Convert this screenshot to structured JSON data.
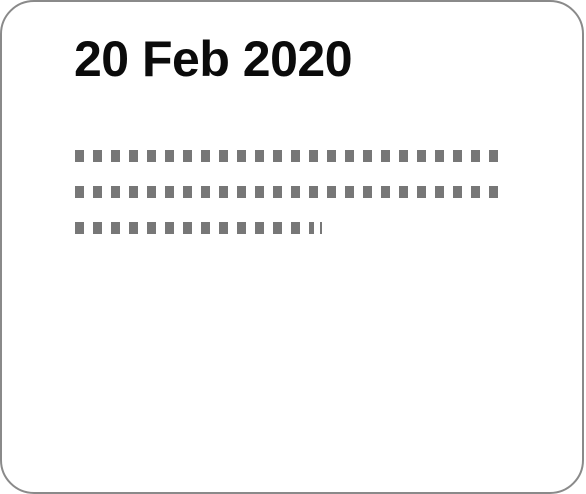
{
  "card": {
    "date": "20 Feb 2020"
  }
}
